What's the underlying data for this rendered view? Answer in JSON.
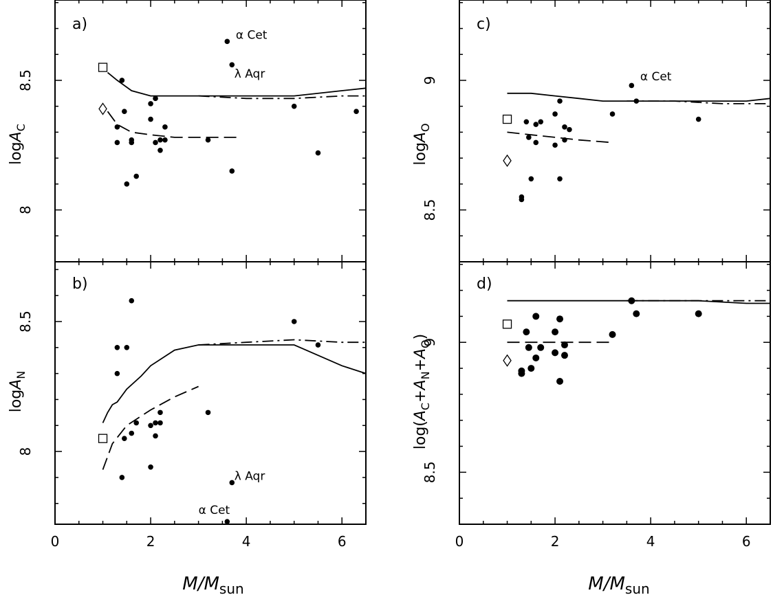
{
  "chart_data": [
    {
      "panel": "a)",
      "type": "scatter",
      "xlabel": "M/M_sun",
      "ylabel": "logA_C",
      "xlim": [
        0,
        6.5
      ],
      "ylim": [
        7.8,
        8.81
      ],
      "xticks": [
        0,
        2,
        4,
        6
      ],
      "xtick_labels": [
        "0",
        "2",
        "4",
        "6"
      ],
      "yticks": [
        8,
        8.5
      ],
      "ytick_labels": [
        "8",
        "8.5"
      ],
      "show_xtick_labels": false,
      "points": [
        {
          "x": 1.4,
          "y": 8.5
        },
        {
          "x": 1.3,
          "y": 8.32
        },
        {
          "x": 1.45,
          "y": 8.38
        },
        {
          "x": 1.3,
          "y": 8.26
        },
        {
          "x": 1.6,
          "y": 8.27
        },
        {
          "x": 1.6,
          "y": 8.26
        },
        {
          "x": 1.5,
          "y": 8.1
        },
        {
          "x": 1.7,
          "y": 8.13
        },
        {
          "x": 2.0,
          "y": 8.41
        },
        {
          "x": 2.1,
          "y": 8.43
        },
        {
          "x": 2.0,
          "y": 8.35
        },
        {
          "x": 2.1,
          "y": 8.26
        },
        {
          "x": 2.2,
          "y": 8.27
        },
        {
          "x": 2.3,
          "y": 8.32
        },
        {
          "x": 2.3,
          "y": 8.27
        },
        {
          "x": 2.2,
          "y": 8.23
        },
        {
          "x": 3.2,
          "y": 8.27
        },
        {
          "x": 3.6,
          "y": 8.65
        },
        {
          "x": 3.7,
          "y": 8.56
        },
        {
          "x": 3.7,
          "y": 8.15
        },
        {
          "x": 5.0,
          "y": 8.4
        },
        {
          "x": 5.5,
          "y": 8.22
        },
        {
          "x": 6.3,
          "y": 8.38
        }
      ],
      "square": {
        "x": 1.0,
        "y": 8.55
      },
      "diamond": {
        "x": 1.0,
        "y": 8.39
      },
      "solid": [
        [
          1.1,
          8.53
        ],
        [
          1.3,
          8.5
        ],
        [
          1.6,
          8.46
        ],
        [
          2.0,
          8.44
        ],
        [
          2.5,
          8.44
        ],
        [
          3.0,
          8.44
        ],
        [
          4.0,
          8.44
        ],
        [
          5.0,
          8.44
        ],
        [
          6.0,
          8.46
        ],
        [
          6.5,
          8.47
        ]
      ],
      "dashed": [
        [
          1.1,
          8.38
        ],
        [
          1.3,
          8.33
        ],
        [
          1.6,
          8.3
        ],
        [
          2.0,
          8.29
        ],
        [
          2.5,
          8.28
        ],
        [
          3.0,
          8.28
        ],
        [
          3.8,
          8.28
        ]
      ],
      "dashdot": [
        [
          3.0,
          8.44
        ],
        [
          4.0,
          8.43
        ],
        [
          5.0,
          8.43
        ],
        [
          6.0,
          8.44
        ],
        [
          6.5,
          8.44
        ]
      ],
      "annotations": [
        {
          "text": "α Cet",
          "x": 3.78,
          "y": 8.66
        },
        {
          "text": "λ Aqr",
          "x": 3.75,
          "y": 8.51
        }
      ]
    },
    {
      "panel": "b)",
      "type": "scatter",
      "xlabel": "M/M_sun",
      "ylabel": "logA_N",
      "xlim": [
        0,
        6.5
      ],
      "ylim": [
        7.72,
        8.73
      ],
      "xticks": [
        0,
        2,
        4,
        6
      ],
      "xtick_labels": [
        "0",
        "2",
        "4",
        "6"
      ],
      "yticks": [
        8,
        8.5
      ],
      "ytick_labels": [
        "8",
        "8.5"
      ],
      "show_xtick_labels": true,
      "points": [
        {
          "x": 1.3,
          "y": 8.4
        },
        {
          "x": 1.3,
          "y": 8.3
        },
        {
          "x": 1.5,
          "y": 8.4
        },
        {
          "x": 1.6,
          "y": 8.58
        },
        {
          "x": 1.45,
          "y": 8.05
        },
        {
          "x": 1.6,
          "y": 8.07
        },
        {
          "x": 1.7,
          "y": 8.11
        },
        {
          "x": 1.4,
          "y": 7.9
        },
        {
          "x": 2.0,
          "y": 8.1
        },
        {
          "x": 2.1,
          "y": 8.11
        },
        {
          "x": 2.2,
          "y": 8.11
        },
        {
          "x": 2.2,
          "y": 8.15
        },
        {
          "x": 2.1,
          "y": 8.06
        },
        {
          "x": 2.0,
          "y": 7.94
        },
        {
          "x": 3.2,
          "y": 8.15
        },
        {
          "x": 3.7,
          "y": 7.88
        },
        {
          "x": 3.6,
          "y": 7.73
        },
        {
          "x": 5.0,
          "y": 8.5
        },
        {
          "x": 5.5,
          "y": 8.41
        }
      ],
      "square": {
        "x": 1.0,
        "y": 8.05
      },
      "diamond": null,
      "solid": [
        [
          1.0,
          8.11
        ],
        [
          1.1,
          8.15
        ],
        [
          1.2,
          8.18
        ],
        [
          1.3,
          8.19
        ],
        [
          1.5,
          8.24
        ],
        [
          1.8,
          8.29
        ],
        [
          2.0,
          8.33
        ],
        [
          2.5,
          8.39
        ],
        [
          3.0,
          8.41
        ],
        [
          4.0,
          8.41
        ],
        [
          5.0,
          8.41
        ],
        [
          6.0,
          8.33
        ],
        [
          6.5,
          8.3
        ]
      ],
      "dashed": [
        [
          1.0,
          7.93
        ],
        [
          1.2,
          8.03
        ],
        [
          1.5,
          8.1
        ],
        [
          2.0,
          8.16
        ],
        [
          2.5,
          8.21
        ],
        [
          3.0,
          8.25
        ]
      ],
      "dashdot": [
        [
          3.0,
          8.41
        ],
        [
          4.0,
          8.42
        ],
        [
          5.0,
          8.43
        ],
        [
          6.0,
          8.42
        ],
        [
          6.5,
          8.42
        ]
      ],
      "annotations": [
        {
          "text": "λ Aqr",
          "x": 3.75,
          "y": 7.89
        },
        {
          "text": "α Cet",
          "x": 3.0,
          "y": 7.76
        }
      ]
    },
    {
      "panel": "c)",
      "type": "scatter",
      "xlabel": "M/M_sun",
      "ylabel": "logA_O",
      "xlim": [
        0,
        6.5
      ],
      "ylim": [
        8.3,
        9.31
      ],
      "xticks": [
        0,
        2,
        4,
        6
      ],
      "xtick_labels": [
        "0",
        "2",
        "4",
        "6"
      ],
      "yticks": [
        8.5,
        9
      ],
      "ytick_labels": [
        "8.5",
        "9"
      ],
      "show_xtick_labels": false,
      "points": [
        {
          "x": 1.4,
          "y": 8.84
        },
        {
          "x": 1.45,
          "y": 8.78
        },
        {
          "x": 1.6,
          "y": 8.83
        },
        {
          "x": 1.7,
          "y": 8.84
        },
        {
          "x": 1.6,
          "y": 8.76
        },
        {
          "x": 1.5,
          "y": 8.62
        },
        {
          "x": 1.3,
          "y": 8.55
        },
        {
          "x": 1.3,
          "y": 8.54
        },
        {
          "x": 2.0,
          "y": 8.87
        },
        {
          "x": 2.1,
          "y": 8.92
        },
        {
          "x": 2.0,
          "y": 8.75
        },
        {
          "x": 2.1,
          "y": 8.62
        },
        {
          "x": 2.2,
          "y": 8.82
        },
        {
          "x": 2.3,
          "y": 8.81
        },
        {
          "x": 2.2,
          "y": 8.77
        },
        {
          "x": 3.2,
          "y": 8.87
        },
        {
          "x": 3.6,
          "y": 8.98
        },
        {
          "x": 3.7,
          "y": 8.92
        },
        {
          "x": 5.0,
          "y": 8.85
        }
      ],
      "square": {
        "x": 1.0,
        "y": 8.85
      },
      "diamond": {
        "x": 1.0,
        "y": 8.69
      },
      "solid": [
        [
          1.0,
          8.95
        ],
        [
          1.5,
          8.95
        ],
        [
          2.0,
          8.94
        ],
        [
          2.5,
          8.93
        ],
        [
          3.0,
          8.92
        ],
        [
          4.0,
          8.92
        ],
        [
          5.0,
          8.92
        ],
        [
          6.0,
          8.92
        ],
        [
          6.5,
          8.93
        ]
      ],
      "dashed": [
        [
          1.0,
          8.8
        ],
        [
          1.5,
          8.79
        ],
        [
          2.0,
          8.78
        ],
        [
          2.5,
          8.77
        ],
        [
          3.2,
          8.76
        ]
      ],
      "dashdot": [
        [
          3.5,
          8.92
        ],
        [
          4.5,
          8.92
        ],
        [
          5.5,
          8.91
        ],
        [
          6.5,
          8.91
        ]
      ],
      "annotations": [
        {
          "text": "α Cet",
          "x": 3.78,
          "y": 9.0
        }
      ]
    },
    {
      "panel": "d)",
      "type": "scatter",
      "xlabel": "M/M_sun",
      "ylabel": "log(A_C+A_N+A_O)",
      "xlim": [
        0,
        6.5
      ],
      "ylim": [
        8.3,
        9.31
      ],
      "xticks": [
        0,
        2,
        4,
        6
      ],
      "xtick_labels": [
        "0",
        "2",
        "4",
        "6"
      ],
      "yticks": [
        8.5,
        9
      ],
      "ytick_labels": [
        "8.5",
        "9"
      ],
      "show_xtick_labels": true,
      "points": [
        {
          "x": 1.4,
          "y": 9.04
        },
        {
          "x": 1.45,
          "y": 8.98
        },
        {
          "x": 1.6,
          "y": 9.1
        },
        {
          "x": 1.7,
          "y": 8.98
        },
        {
          "x": 1.6,
          "y": 8.94
        },
        {
          "x": 1.5,
          "y": 8.9
        },
        {
          "x": 1.3,
          "y": 8.89
        },
        {
          "x": 1.3,
          "y": 8.88
        },
        {
          "x": 2.0,
          "y": 9.04
        },
        {
          "x": 2.1,
          "y": 9.09
        },
        {
          "x": 2.0,
          "y": 8.96
        },
        {
          "x": 2.1,
          "y": 8.85
        },
        {
          "x": 2.2,
          "y": 8.99
        },
        {
          "x": 2.2,
          "y": 8.95
        },
        {
          "x": 3.2,
          "y": 9.03
        },
        {
          "x": 3.6,
          "y": 9.16
        },
        {
          "x": 3.7,
          "y": 9.11
        },
        {
          "x": 5.0,
          "y": 9.11
        }
      ],
      "square": {
        "x": 1.0,
        "y": 9.07
      },
      "diamond": {
        "x": 1.0,
        "y": 8.93
      },
      "solid": [
        [
          1.0,
          9.16
        ],
        [
          2.0,
          9.16
        ],
        [
          3.0,
          9.16
        ],
        [
          4.0,
          9.16
        ],
        [
          5.0,
          9.16
        ],
        [
          6.0,
          9.15
        ],
        [
          6.5,
          9.15
        ]
      ],
      "dashed": [
        [
          1.0,
          9.0
        ],
        [
          2.0,
          9.0
        ],
        [
          3.2,
          9.0
        ]
      ],
      "dashdot": [
        [
          3.5,
          9.16
        ],
        [
          4.5,
          9.16
        ],
        [
          5.5,
          9.16
        ],
        [
          6.5,
          9.16
        ]
      ],
      "annotations": []
    }
  ]
}
